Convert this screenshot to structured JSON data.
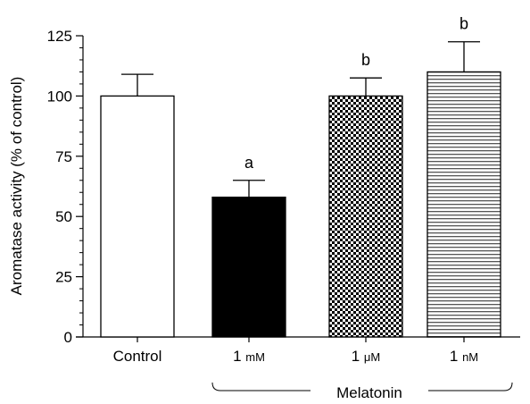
{
  "chart_data": {
    "type": "bar",
    "ylabel": "Aromatase activity (% of control)",
    "ylim": [
      0,
      125
    ],
    "yticks": [
      0,
      25,
      50,
      75,
      100,
      125
    ],
    "minor_tick_step": 5,
    "grid": false,
    "categories": [
      "Control",
      "1 mM",
      "1 μM",
      "1 nM"
    ],
    "category_labels": [
      {
        "main": "Control",
        "unit": ""
      },
      {
        "main": "1 ",
        "unit": "mM"
      },
      {
        "main": "1 ",
        "unit": "μM"
      },
      {
        "main": "1 ",
        "unit": "nM"
      }
    ],
    "values": [
      100,
      58,
      100,
      110
    ],
    "error_upper": [
      109,
      65,
      107.5,
      122.5
    ],
    "annotations": [
      "",
      "a",
      "b",
      "b"
    ],
    "fills": [
      "white",
      "black",
      "checker",
      "hlines"
    ],
    "group_bracket": {
      "label": "Melatonin",
      "from_category": 1,
      "to_category": 3
    }
  }
}
